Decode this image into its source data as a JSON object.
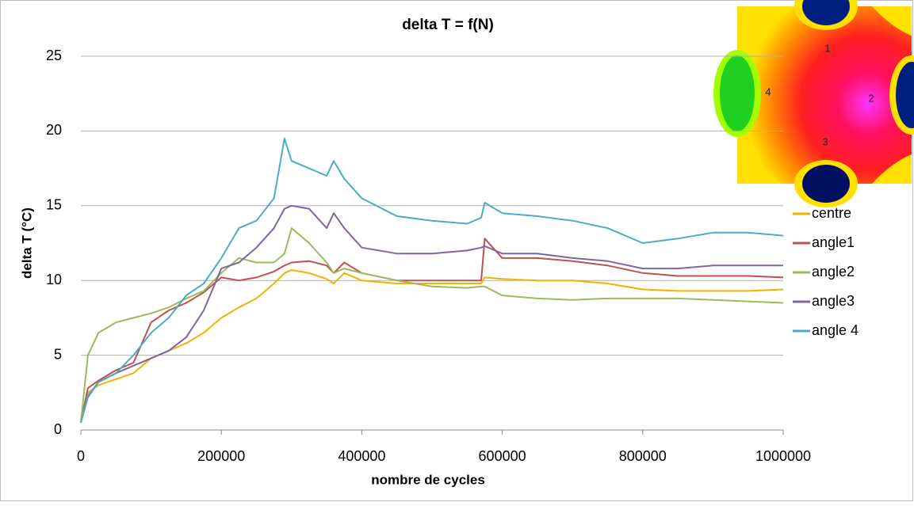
{
  "chart_data": {
    "type": "line",
    "title": "delta T = f(N)",
    "x_label": "nombre de cycles",
    "y_label": "delta T (°C)",
    "x": [
      0,
      10000,
      25000,
      50000,
      75000,
      100000,
      125000,
      150000,
      175000,
      200000,
      225000,
      250000,
      275000,
      290000,
      300000,
      325000,
      350000,
      360000,
      375000,
      400000,
      450000,
      500000,
      550000,
      570000,
      575000,
      600000,
      650000,
      700000,
      750000,
      800000,
      850000,
      900000,
      950000,
      1000000
    ],
    "series": [
      {
        "name": "centre",
        "color": "#f2b200",
        "values": [
          0.5,
          2.5,
          3,
          3.4,
          3.8,
          4.8,
          5.3,
          5.8,
          6.5,
          7.5,
          8.2,
          8.8,
          9.8,
          10.5,
          10.7,
          10.5,
          10.1,
          9.8,
          10.5,
          10,
          9.8,
          9.8,
          9.8,
          9.8,
          10.2,
          10.1,
          10,
          10,
          9.8,
          9.4,
          9.3,
          9.3,
          9.3,
          9.4
        ]
      },
      {
        "name": "angle1",
        "color": "#c0504d",
        "values": [
          0.5,
          2.8,
          3.3,
          4,
          4.5,
          7.2,
          8,
          8.5,
          9.2,
          10.2,
          10,
          10.2,
          10.6,
          11,
          11.2,
          11.3,
          11,
          10.5,
          11.2,
          10.5,
          10,
          10,
          10,
          10,
          12.8,
          11.5,
          11.5,
          11.3,
          11,
          10.5,
          10.3,
          10.3,
          10.3,
          10.2
        ]
      },
      {
        "name": "angle2",
        "color": "#9bbb59",
        "values": [
          0.5,
          5,
          6.5,
          7.2,
          7.5,
          7.8,
          8.2,
          8.8,
          9.3,
          10.5,
          11.5,
          11.2,
          11.2,
          11.8,
          13.5,
          12.5,
          11.2,
          10.5,
          10.8,
          10.5,
          10,
          9.6,
          9.5,
          9.6,
          9.6,
          9,
          8.8,
          8.7,
          8.8,
          8.8,
          8.8,
          8.7,
          8.6,
          8.5
        ]
      },
      {
        "name": "angle3",
        "color": "#8064a2",
        "values": [
          0.5,
          2.2,
          3.2,
          3.8,
          4.3,
          4.8,
          5.3,
          6.2,
          8,
          10.8,
          11.2,
          12.2,
          13.5,
          14.8,
          15,
          14.8,
          13.5,
          14.5,
          13.5,
          12.2,
          11.8,
          11.8,
          12,
          12.2,
          12.3,
          11.8,
          11.8,
          11.5,
          11.3,
          10.8,
          10.8,
          11,
          11,
          11
        ]
      },
      {
        "name": "angle 4",
        "color": "#4bacc6",
        "values": [
          0.5,
          2.3,
          3.2,
          3.8,
          5,
          6.5,
          7.5,
          9,
          9.8,
          11.5,
          13.5,
          14,
          15.5,
          19.5,
          18,
          17.5,
          17,
          18,
          16.8,
          15.5,
          14.3,
          14,
          13.8,
          14.2,
          15.2,
          14.5,
          14.3,
          14,
          13.5,
          12.5,
          12.8,
          13.2,
          13.2,
          13
        ]
      }
    ],
    "xlim": [
      0,
      1000000
    ],
    "xticks": [
      0,
      200000,
      400000,
      600000,
      800000,
      1000000
    ],
    "ylim": [
      0,
      25
    ],
    "yticks": [
      0,
      5,
      10,
      15,
      20,
      25
    ],
    "grid": true,
    "legend": "right",
    "inset_labels": [
      "1",
      "2",
      "3",
      "4"
    ]
  }
}
